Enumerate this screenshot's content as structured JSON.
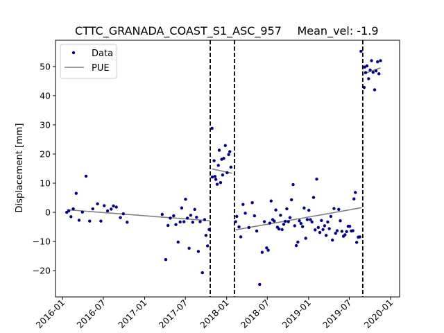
{
  "chart_data": {
    "type": "scatter",
    "title": "CTTC_GRANADA_COAST_S1_ASC_957",
    "title_right": "Mean_vel: -1.9",
    "xlabel": "",
    "ylabel": "Displacement [mm]",
    "xlim": [
      "2015-12-01",
      "2020-02-10"
    ],
    "ylim": [
      -29,
      59
    ],
    "y_ticks": [
      -20,
      -10,
      0,
      10,
      20,
      30,
      40,
      50
    ],
    "x_ticks": [
      "2016-01",
      "2016-07",
      "2017-01",
      "2017-07",
      "2018-01",
      "2018-07",
      "2019-01",
      "2019-07",
      "2020-01"
    ],
    "x_tick_dates": [
      "2016-01-01",
      "2016-07-01",
      "2017-01-01",
      "2017-07-01",
      "2018-01-01",
      "2018-07-01",
      "2019-01-01",
      "2019-07-01",
      "2020-01-01"
    ],
    "grid": false,
    "legend_position": "top-left",
    "colors": {
      "data": "#00008b",
      "pue": "#808080",
      "breaks": "#000000"
    },
    "vertical_breaks": [
      "2017-10-20",
      "2018-02-05",
      "2019-08-30"
    ],
    "series": [
      {
        "name": "Data",
        "kind": "points",
        "points": [
          [
            "2016-01-20",
            0
          ],
          [
            "2016-01-29",
            0.5
          ],
          [
            "2016-02-08",
            -1.5
          ],
          [
            "2016-02-18",
            1.2
          ],
          [
            "2016-03-02",
            6.5
          ],
          [
            "2016-03-15",
            -2.7
          ],
          [
            "2016-03-30",
            0.1
          ],
          [
            "2016-04-15",
            12.4
          ],
          [
            "2016-05-01",
            -3
          ],
          [
            "2016-05-15",
            1.2
          ],
          [
            "2016-06-05",
            2.9
          ],
          [
            "2016-06-20",
            -3
          ],
          [
            "2016-07-05",
            2.3
          ],
          [
            "2016-07-20",
            0.5
          ],
          [
            "2016-08-05",
            1.1
          ],
          [
            "2016-08-15",
            2.2
          ],
          [
            "2016-08-28",
            1.8
          ],
          [
            "2016-09-15",
            -1.8
          ],
          [
            "2016-09-28",
            -0.5
          ],
          [
            "2016-10-15",
            -3.4
          ],
          [
            "2017-03-20",
            -0.7
          ],
          [
            "2017-04-05",
            -16.2
          ],
          [
            "2017-04-15",
            -4.5
          ],
          [
            "2017-04-25",
            -2
          ],
          [
            "2017-05-10",
            -1.2
          ],
          [
            "2017-05-20",
            -4.2
          ],
          [
            "2017-05-30",
            -10.2
          ],
          [
            "2017-06-08",
            -3.3
          ],
          [
            "2017-06-15",
            1.5
          ],
          [
            "2017-06-25",
            -3.2
          ],
          [
            "2017-07-02",
            4.5
          ],
          [
            "2017-07-10",
            -2
          ],
          [
            "2017-07-18",
            -12.3
          ],
          [
            "2017-07-25",
            -1
          ],
          [
            "2017-08-03",
            -3.4
          ],
          [
            "2017-08-12",
            1
          ],
          [
            "2017-08-20",
            -1.7
          ],
          [
            "2017-08-28",
            -13.4
          ],
          [
            "2017-09-05",
            -3.2
          ],
          [
            "2017-09-15",
            -20.7
          ],
          [
            "2017-09-25",
            -2.5
          ],
          [
            "2017-10-01",
            -7.9
          ],
          [
            "2017-10-08",
            -11.5
          ],
          [
            "2017-10-15",
            -5.9
          ],
          [
            "2017-10-28",
            28.8
          ],
          [
            "2017-10-29",
            12.1
          ],
          [
            "2017-11-06",
            17.7
          ],
          [
            "2017-11-10",
            12.3
          ],
          [
            "2017-11-14",
            11.3
          ],
          [
            "2017-11-20",
            9.6
          ],
          [
            "2017-11-25",
            16.1
          ],
          [
            "2017-11-29",
            21.3
          ],
          [
            "2017-12-05",
            10.2
          ],
          [
            "2017-12-10",
            18.2
          ],
          [
            "2017-12-14",
            12.8
          ],
          [
            "2017-12-19",
            18.5
          ],
          [
            "2017-12-26",
            22.9
          ],
          [
            "2018-01-03",
            13.6
          ],
          [
            "2018-01-10",
            19.8
          ],
          [
            "2018-01-15",
            20.8
          ],
          [
            "2018-01-20",
            15.5
          ],
          [
            "2018-02-10",
            -3.2
          ],
          [
            "2018-02-15",
            -1.4
          ],
          [
            "2018-02-25",
            -5
          ],
          [
            "2018-03-05",
            -8.4
          ],
          [
            "2018-03-15",
            2.7
          ],
          [
            "2018-03-25",
            -0.3
          ],
          [
            "2018-04-10",
            -5.2
          ],
          [
            "2018-04-25",
            3.3
          ],
          [
            "2018-05-05",
            -1.2
          ],
          [
            "2018-05-15",
            -6.4
          ],
          [
            "2018-05-28",
            -24.7
          ],
          [
            "2018-06-08",
            -13.7
          ],
          [
            "2018-06-18",
            -3.2
          ],
          [
            "2018-06-28",
            -12.2
          ],
          [
            "2018-07-05",
            -13
          ],
          [
            "2018-07-12",
            -3.7
          ],
          [
            "2018-07-18",
            3.9
          ],
          [
            "2018-07-25",
            -2.5
          ],
          [
            "2018-08-01",
            -3
          ],
          [
            "2018-08-08",
            0.8
          ],
          [
            "2018-08-15",
            -5.1
          ],
          [
            "2018-08-22",
            -5.7
          ],
          [
            "2018-08-29",
            -1
          ],
          [
            "2018-09-05",
            -5.9
          ],
          [
            "2018-09-12",
            -4.1
          ],
          [
            "2018-09-19",
            -3.1
          ],
          [
            "2018-09-26",
            1.2
          ],
          [
            "2018-10-03",
            -3.2
          ],
          [
            "2018-10-10",
            -1.8
          ],
          [
            "2018-10-17",
            4.3
          ],
          [
            "2018-10-24",
            9.5
          ],
          [
            "2018-10-31",
            -4.6
          ],
          [
            "2018-11-07",
            -11.4
          ],
          [
            "2018-11-14",
            -10.2
          ],
          [
            "2018-11-21",
            -2.9
          ],
          [
            "2018-11-28",
            -3.8
          ],
          [
            "2018-12-05",
            -4.9
          ],
          [
            "2018-12-12",
            1.5
          ],
          [
            "2018-12-19",
            -8.9
          ],
          [
            "2018-12-26",
            -2.5
          ],
          [
            "2019-01-02",
            0.7
          ],
          [
            "2019-01-09",
            -2.5
          ],
          [
            "2019-01-16",
            -3.3
          ],
          [
            "2019-01-23",
            5.1
          ],
          [
            "2019-01-30",
            -6
          ],
          [
            "2019-02-06",
            11.4
          ],
          [
            "2019-02-13",
            -5.2
          ],
          [
            "2019-02-20",
            -6.9
          ],
          [
            "2019-02-27",
            -2.8
          ],
          [
            "2019-03-06",
            -5.9
          ],
          [
            "2019-03-13",
            -4.6
          ],
          [
            "2019-03-20",
            -7.9
          ],
          [
            "2019-03-27",
            -3.3
          ],
          [
            "2019-04-03",
            -5.6
          ],
          [
            "2019-04-10",
            -1.4
          ],
          [
            "2019-04-17",
            -9.5
          ],
          [
            "2019-04-24",
            1.3
          ],
          [
            "2019-05-01",
            -7.2
          ],
          [
            "2019-05-08",
            -6.3
          ],
          [
            "2019-05-15",
            1
          ],
          [
            "2019-05-22",
            -2.9
          ],
          [
            "2019-05-29",
            -6.5
          ],
          [
            "2019-06-05",
            -8.2
          ],
          [
            "2019-06-12",
            -7.7
          ],
          [
            "2019-06-19",
            -6.6
          ],
          [
            "2019-06-26",
            -4.8
          ],
          [
            "2019-07-03",
            -4.8
          ],
          [
            "2019-07-10",
            -6.4
          ],
          [
            "2019-07-17",
            -6.3
          ],
          [
            "2019-07-22",
            4.6
          ],
          [
            "2019-07-28",
            6.8
          ],
          [
            "2019-08-03",
            -10.3
          ],
          [
            "2019-08-10",
            -8.5
          ],
          [
            "2019-08-17",
            -8.4
          ],
          [
            "2019-08-22",
            55.2
          ],
          [
            "2019-09-05",
            42.8
          ],
          [
            "2019-09-08",
            49.8
          ],
          [
            "2019-09-12",
            47.9
          ],
          [
            "2019-09-18",
            50.2
          ],
          [
            "2019-09-25",
            45.8
          ],
          [
            "2019-10-02",
            48.8
          ],
          [
            "2019-10-08",
            52
          ],
          [
            "2019-10-15",
            48
          ],
          [
            "2019-10-22",
            42
          ],
          [
            "2019-10-28",
            48.5
          ],
          [
            "2019-11-04",
            51.6
          ],
          [
            "2019-11-10",
            47.5
          ],
          [
            "2019-11-17",
            52
          ]
        ]
      },
      {
        "name": "PUE",
        "kind": "segments",
        "segments": [
          [
            [
              "2016-01-20",
              0.9
            ],
            [
              "2017-10-20",
              -2.9
            ]
          ],
          [
            [
              "2017-10-28",
              14.9
            ],
            [
              "2018-01-25",
              13.4
            ]
          ],
          [
            [
              "2018-02-10",
              -6
            ],
            [
              "2019-08-25",
              1.6
            ]
          ],
          [
            [
              "2019-09-01",
              47.5
            ],
            [
              "2019-11-17",
              49.5
            ]
          ]
        ]
      }
    ]
  }
}
